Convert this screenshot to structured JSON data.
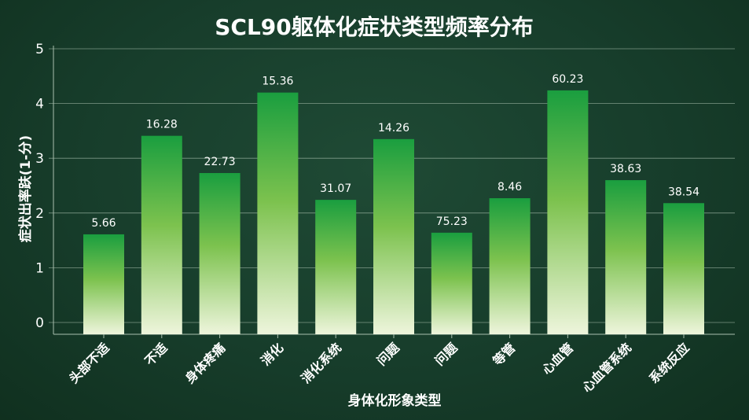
{
  "chart_data": {
    "type": "bar",
    "title": "SCL90躯体化症状类型频率分布",
    "xlabel": "身体化形象类型",
    "ylabel": "症状出率趺(1-分)",
    "ylim": [
      0,
      5
    ],
    "yticks": [
      "0",
      "1",
      "2",
      "3",
      "4",
      "5"
    ],
    "grid": true,
    "categories": [
      "头部不适",
      "不适",
      "身体疼痛",
      "消化",
      "消化系统",
      "问题",
      "问题",
      "等管",
      "心血管",
      "心血管系统",
      "系统反应"
    ],
    "values": [
      1.61,
      3.41,
      2.73,
      4.2,
      2.24,
      3.35,
      1.64,
      2.27,
      4.24,
      2.6,
      2.18
    ],
    "data_labels": [
      "5.66",
      "16.28",
      "22.73",
      "15.36",
      "31.07",
      "14.26",
      "75.23",
      "8.46",
      "60.23",
      "38.63",
      "38.54"
    ],
    "colors": {
      "bar_top": "#1a9e3f",
      "bar_mid": "#7cc24e",
      "bar_bottom": "#eef5dc",
      "text": "#ffffff",
      "grid": "#a9bfae"
    }
  }
}
